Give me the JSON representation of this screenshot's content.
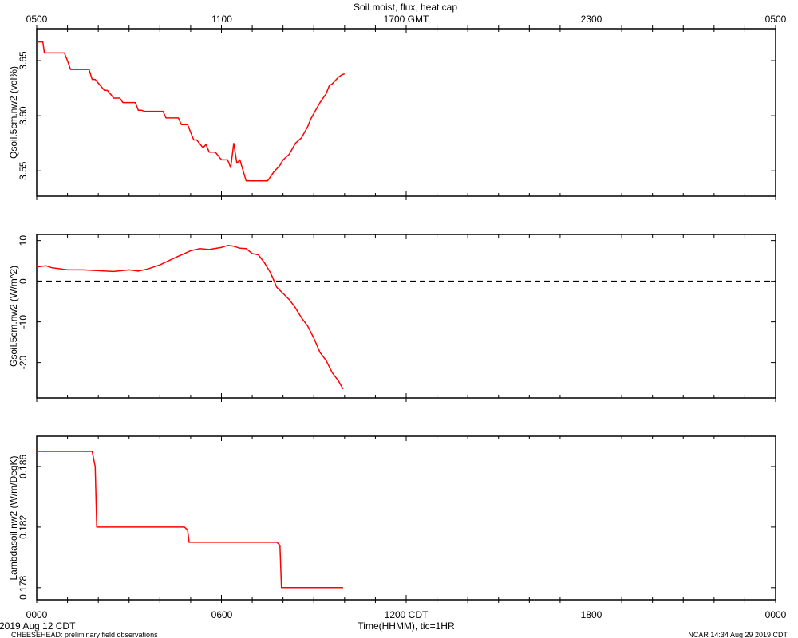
{
  "header": {
    "title": "Soil moist, flux, heat cap",
    "top_axis_ticks": [
      "0500",
      "1100",
      "1700 GMT",
      "2300",
      "0500"
    ]
  },
  "footer": {
    "bottom_axis_ticks": [
      "0000",
      "0600",
      "1200 CDT",
      "1800",
      "0000"
    ],
    "xlabel": "Time(HHMM), tic=1HR",
    "date": "2019 Aug 12 CDT",
    "project": "CHEESEHEAD: preliminary field observations",
    "credit": "NCAR 14:34 Aug 29 2019 CDT"
  },
  "colors": {
    "series": "#ff0000",
    "axes": "#000000",
    "zero_line": "#000000"
  },
  "chart_data": [
    {
      "type": "line",
      "title": "Soil moist, flux, heat cap",
      "ylabel": "Qsoil.5cm.nw2 (vol%)",
      "xlim": [
        0,
        24
      ],
      "ylim": [
        3.527,
        3.679
      ],
      "yticks": [
        3.55,
        3.6,
        3.65
      ],
      "yticklabels": [
        "3.55",
        "3.60",
        "3.65"
      ],
      "grid": false,
      "series": [
        {
          "x": [
            0.0,
            0.2,
            0.25,
            0.9,
            1.0,
            1.1,
            1.7,
            1.8,
            1.9,
            2.2,
            2.3,
            2.5,
            2.7,
            2.8,
            3.2,
            3.3,
            3.4,
            3.5,
            4.1,
            4.2,
            4.6,
            4.7,
            4.9,
            5.0,
            5.1,
            5.2,
            5.4,
            5.5,
            5.6,
            5.8,
            6.0,
            6.2,
            6.3,
            6.4,
            6.5,
            6.6,
            6.8,
            7.0,
            7.2,
            7.5,
            7.7,
            7.9,
            8.0,
            8.2,
            8.4,
            8.6,
            8.8,
            8.9,
            9.1,
            9.2,
            9.4,
            9.5,
            9.6,
            9.8,
            9.9,
            10.0
          ],
          "y": [
            3.667,
            3.667,
            3.657,
            3.657,
            3.65,
            3.642,
            3.642,
            3.633,
            3.633,
            3.623,
            3.623,
            3.616,
            3.616,
            3.612,
            3.612,
            3.605,
            3.605,
            3.604,
            3.604,
            3.598,
            3.598,
            3.592,
            3.592,
            3.585,
            3.578,
            3.578,
            3.571,
            3.574,
            3.567,
            3.567,
            3.56,
            3.56,
            3.553,
            3.575,
            3.557,
            3.56,
            3.541,
            3.541,
            3.541,
            3.541,
            3.549,
            3.555,
            3.56,
            3.565,
            3.575,
            3.58,
            3.59,
            3.597,
            3.607,
            3.612,
            3.62,
            3.627,
            3.629,
            3.635,
            3.637,
            3.638
          ]
        }
      ]
    },
    {
      "type": "line",
      "ylabel": "Gsoil.5cm.nw2 (W/m^2)",
      "xlim": [
        0,
        24
      ],
      "ylim": [
        -28.7,
        11.5
      ],
      "yticks": [
        10,
        0,
        -10,
        -20
      ],
      "yticklabels": [
        "10",
        "0",
        "-10",
        "-20"
      ],
      "reference_line": 0,
      "grid": false,
      "series": [
        {
          "x": [
            0.0,
            0.3,
            0.5,
            0.8,
            1.0,
            1.5,
            2.0,
            2.5,
            3.0,
            3.3,
            3.6,
            4.0,
            4.5,
            5.0,
            5.3,
            5.6,
            6.0,
            6.2,
            6.4,
            6.6,
            6.8,
            7.0,
            7.2,
            7.4,
            7.6,
            7.8,
            8.0,
            8.2,
            8.4,
            8.6,
            8.8,
            9.0,
            9.2,
            9.4,
            9.6,
            9.8,
            9.95
          ],
          "y": [
            3.5,
            3.8,
            3.3,
            3.0,
            2.8,
            2.8,
            2.6,
            2.4,
            2.8,
            2.5,
            3.0,
            4.0,
            5.8,
            7.5,
            8.0,
            7.8,
            8.3,
            8.8,
            8.6,
            8.1,
            8.0,
            6.8,
            6.5,
            4.5,
            2.0,
            -1.5,
            -3.0,
            -4.5,
            -6.5,
            -9.0,
            -11.0,
            -14.0,
            -17.5,
            -19.5,
            -22.5,
            -24.5,
            -26.5
          ]
        }
      ]
    },
    {
      "type": "line",
      "ylabel": "Lambdasoil.nw2 (W/m/DegK)",
      "xlim": [
        0,
        24
      ],
      "ylim": [
        0.1772,
        0.188
      ],
      "yticks": [
        0.178,
        0.182,
        0.186
      ],
      "yticklabels": [
        "0.178",
        "0.182",
        "0.186"
      ],
      "grid": false,
      "series": [
        {
          "x": [
            0.0,
            1.8,
            1.9,
            1.95,
            4.8,
            4.9,
            4.95,
            7.8,
            7.9,
            7.95,
            9.95
          ],
          "y": [
            0.187,
            0.187,
            0.186,
            0.182,
            0.182,
            0.1818,
            0.181,
            0.181,
            0.1808,
            0.178,
            0.178
          ]
        }
      ]
    }
  ]
}
